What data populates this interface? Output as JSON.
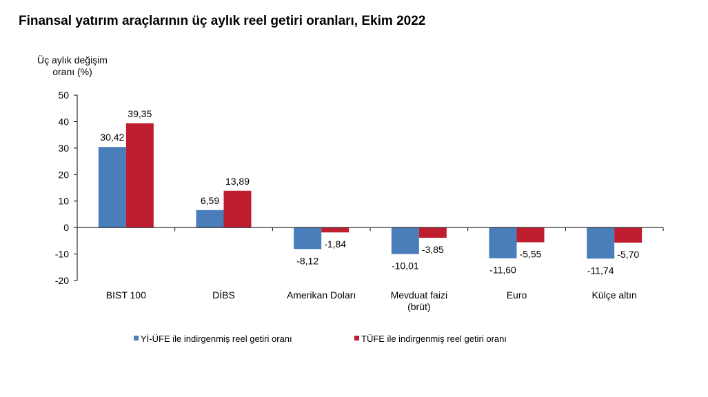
{
  "chart_data": {
    "type": "bar",
    "title": "Finansal yatırım araçlarının üç aylık reel getiri oranları, Ekim 2022",
    "ylabel_lines": [
      "Üç aylık değişim",
      "oranı (%)"
    ],
    "xlabel": "",
    "ylim": [
      -20,
      50
    ],
    "yticks": [
      50,
      40,
      30,
      20,
      10,
      0,
      -10,
      -20
    ],
    "categories": [
      {
        "lines": [
          "BIST 100"
        ]
      },
      {
        "lines": [
          "DİBS"
        ]
      },
      {
        "lines": [
          "Amerikan Doları"
        ]
      },
      {
        "lines": [
          "Mevduat faizi",
          "(brüt)"
        ]
      },
      {
        "lines": [
          "Euro"
        ]
      },
      {
        "lines": [
          "Külçe altın"
        ]
      }
    ],
    "series": [
      {
        "name": "Yİ-ÜFE ile indirgenmiş reel getiri oranı",
        "color": "#4a7ebb",
        "values": [
          30.42,
          6.59,
          -8.12,
          -10.01,
          -11.6,
          -11.74
        ],
        "labels": [
          "30,42",
          "6,59",
          "-8,12",
          "-10,01",
          "-11,60",
          "-11,74"
        ]
      },
      {
        "name": "TÜFE ile indirgenmiş reel getiri oranı",
        "color": "#be1e2d",
        "values": [
          39.35,
          13.89,
          -1.84,
          -3.85,
          -5.55,
          -5.7
        ],
        "labels": [
          "39,35",
          "13,89",
          "-1,84",
          "-3,85",
          "-5,55",
          "-5,70"
        ]
      }
    ],
    "legend_position": "bottom",
    "grid": false
  }
}
